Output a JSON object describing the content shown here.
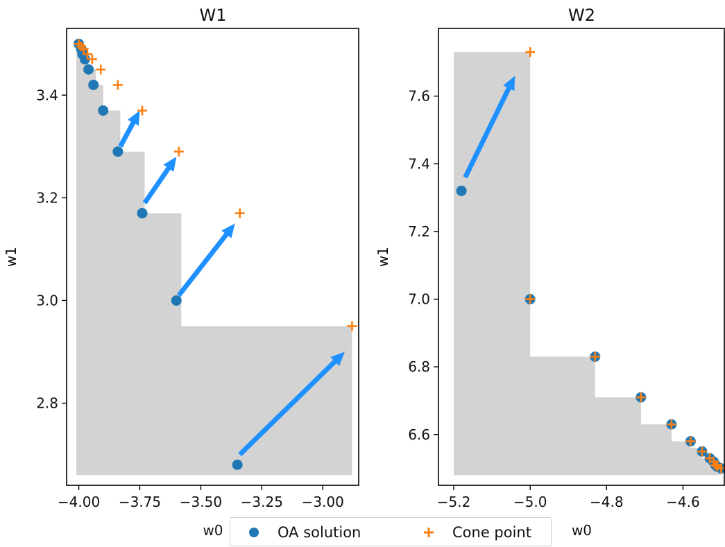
{
  "chart_data": [
    {
      "type": "scatter",
      "title": "W1",
      "xlabel": "w0",
      "ylabel": "w1",
      "xlim": [
        -4.05,
        -2.85
      ],
      "ylim": [
        2.64,
        3.53
      ],
      "xticks": [
        "−4.00",
        "−3.75",
        "−3.50",
        "−3.25",
        "−3.00"
      ],
      "xtick_values": [
        -4.0,
        -3.75,
        -3.5,
        -3.25,
        -3.0
      ],
      "yticks": [
        "2.8",
        "3.0",
        "3.2",
        "3.4"
      ],
      "ytick_values": [
        2.8,
        3.0,
        3.2,
        3.4
      ],
      "region_steps": [
        [
          -4.01,
          3.5
        ],
        [
          -3.99,
          3.49
        ],
        [
          -3.98,
          3.47
        ],
        [
          -3.96,
          3.45
        ],
        [
          -3.93,
          3.42
        ],
        [
          -3.9,
          3.37
        ],
        [
          -3.83,
          3.29
        ],
        [
          -3.73,
          3.17
        ],
        [
          -3.58,
          2.95
        ],
        [
          -3.34,
          2.95
        ],
        [
          -2.88,
          2.66
        ]
      ],
      "region_ybottom": 2.66,
      "region_xright": -2.88,
      "series": [
        {
          "name": "OA solution",
          "marker": "circle",
          "color": "#1f77b4",
          "x": [
            -4.0,
            -3.99,
            -3.985,
            -3.975,
            -3.96,
            -3.94,
            -3.9,
            -3.84,
            -3.74,
            -3.6,
            -3.35
          ],
          "y": [
            3.5,
            3.49,
            3.48,
            3.47,
            3.45,
            3.42,
            3.37,
            3.29,
            3.17,
            3.0,
            2.68
          ]
        },
        {
          "name": "Cone point",
          "marker": "plus",
          "color": "#ff7f0e",
          "x": [
            -4.0,
            -3.99,
            -3.98,
            -3.965,
            -3.945,
            -3.91,
            -3.84,
            -3.74,
            -3.59,
            -3.34,
            -2.88
          ],
          "y": [
            3.5,
            3.495,
            3.49,
            3.48,
            3.47,
            3.45,
            3.42,
            3.37,
            3.29,
            3.17,
            2.95
          ]
        }
      ],
      "arrows": [
        {
          "from": [
            -3.83,
            3.3
          ],
          "to": [
            -3.75,
            3.37
          ]
        },
        {
          "from": [
            -3.73,
            3.19
          ],
          "to": [
            -3.6,
            3.28
          ]
        },
        {
          "from": [
            -3.59,
            3.01
          ],
          "to": [
            -3.36,
            3.15
          ]
        },
        {
          "from": [
            -3.34,
            2.7
          ],
          "to": [
            -2.91,
            2.9
          ]
        }
      ]
    },
    {
      "type": "scatter",
      "title": "W2",
      "xlabel": "w0",
      "ylabel": "w1",
      "xlim": [
        -5.24,
        -4.49
      ],
      "ylim": [
        6.45,
        7.8
      ],
      "xticks": [
        "−5.2",
        "−5.0",
        "−4.8",
        "−4.6"
      ],
      "xtick_values": [
        -5.2,
        -5.0,
        -4.8,
        -4.6
      ],
      "yticks": [
        "6.6",
        "6.8",
        "7.0",
        "7.2",
        "7.4",
        "7.6"
      ],
      "ytick_values": [
        6.6,
        6.8,
        7.0,
        7.2,
        7.4,
        7.6
      ],
      "region_steps": [
        [
          -5.2,
          7.73
        ],
        [
          -5.0,
          6.83
        ],
        [
          -4.83,
          6.71
        ],
        [
          -4.71,
          6.63
        ],
        [
          -4.63,
          6.58
        ],
        [
          -4.58,
          6.56
        ],
        [
          -4.55,
          6.53
        ],
        [
          -4.53,
          6.52
        ],
        [
          -4.52,
          6.51
        ],
        [
          -4.5,
          6.5
        ]
      ],
      "region_ybottom": 6.48,
      "region_xright": -4.5,
      "series": [
        {
          "name": "OA solution",
          "marker": "circle",
          "color": "#1f77b4",
          "x": [
            -5.18,
            -5.0,
            -4.83,
            -4.71,
            -4.63,
            -4.58,
            -4.55,
            -4.53,
            -4.52,
            -4.515,
            -4.51,
            -4.5
          ],
          "y": [
            7.32,
            7.0,
            6.83,
            6.71,
            6.63,
            6.58,
            6.55,
            6.53,
            6.52,
            6.51,
            6.505,
            6.5
          ]
        },
        {
          "name": "Cone point",
          "marker": "plus",
          "color": "#ff7f0e",
          "x": [
            -5.0,
            -5.0,
            -4.83,
            -4.71,
            -4.63,
            -4.58,
            -4.55,
            -4.53,
            -4.52,
            -4.515,
            -4.51,
            -4.5
          ],
          "y": [
            7.73,
            7.0,
            6.83,
            6.71,
            6.63,
            6.58,
            6.55,
            6.53,
            6.52,
            6.51,
            6.505,
            6.5
          ]
        }
      ],
      "arrows": [
        {
          "from": [
            -5.17,
            7.36
          ],
          "to": [
            -5.04,
            7.66
          ]
        }
      ]
    }
  ],
  "legend": {
    "items": [
      {
        "label": "OA solution",
        "marker": "circle",
        "color": "#1f77b4"
      },
      {
        "label": "Cone point",
        "marker": "plus",
        "color": "#ff7f0e"
      }
    ],
    "placement": "bottom-center"
  },
  "colors": {
    "region": "#d3d3d3",
    "arrow": "#1e90ff",
    "axis": "#000000"
  }
}
